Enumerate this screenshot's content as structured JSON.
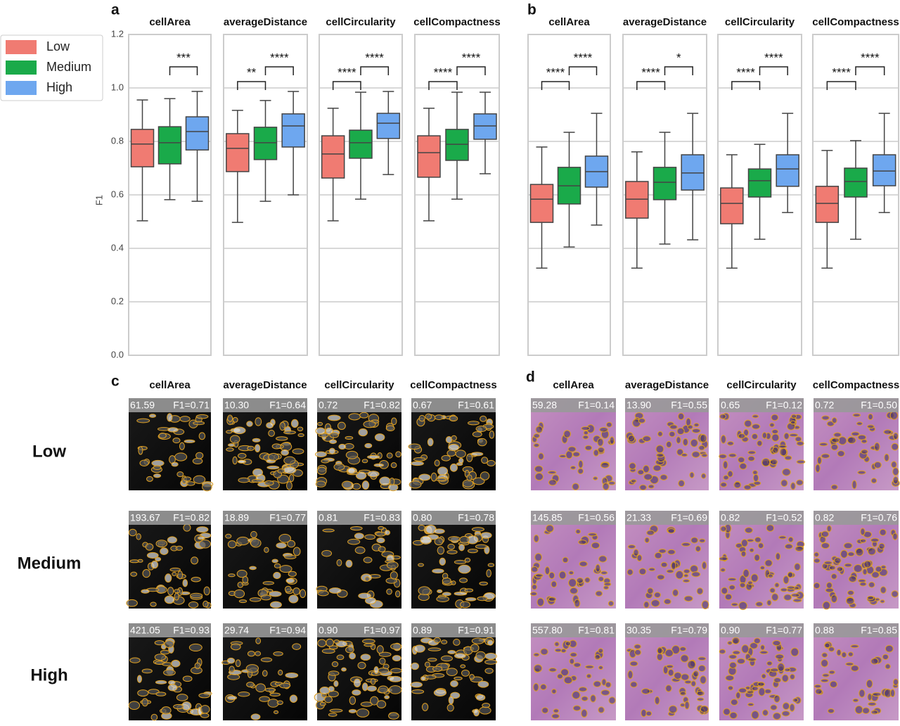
{
  "panels": [
    "a",
    "b",
    "c",
    "d"
  ],
  "legend": [
    {
      "name": "Low",
      "color": "#f07b72"
    },
    {
      "name": "Medium",
      "color": "#1aaa4a"
    },
    {
      "name": "High",
      "color": "#6ea7ef"
    }
  ],
  "chart_data": [
    {
      "type": "box",
      "title": "cellArea",
      "ylabel": "F1",
      "ylim": [
        0,
        1.2
      ],
      "yticks": [
        {
          "value": 0,
          "label": "0.0"
        },
        0.2,
        0.4,
        0.6,
        0.8,
        {
          "value": 1,
          "label": "1.0"
        },
        1.2
      ],
      "boxes": [
        {
          "whisker_low": 0.503,
          "q1": 0.705,
          "median": 0.79,
          "q3": 0.845,
          "whisker_high": 0.955
        },
        {
          "whisker_low": 0.582,
          "q1": 0.716,
          "median": 0.795,
          "q3": 0.855,
          "whisker_high": 0.96
        },
        {
          "whisker_low": 0.576,
          "q1": 0.768,
          "median": 0.837,
          "q3": 0.892,
          "whisker_high": 0.987
        }
      ],
      "significance": [
        null,
        "***"
      ]
    },
    {
      "type": "box",
      "title": "averageDistance",
      "ylim": [
        0,
        1.2
      ],
      "yticks": [
        0,
        0.2,
        0.4,
        0.6,
        0.8,
        1,
        1.2
      ],
      "boxes": [
        {
          "whisker_low": 0.497,
          "q1": 0.687,
          "median": 0.774,
          "q3": 0.829,
          "whisker_high": 0.916
        },
        {
          "whisker_low": 0.576,
          "q1": 0.732,
          "median": 0.795,
          "q3": 0.853,
          "whisker_high": 0.953
        },
        {
          "whisker_low": 0.6,
          "q1": 0.779,
          "median": 0.858,
          "q3": 0.903,
          "whisker_high": 0.987
        }
      ],
      "significance": [
        "**",
        "****"
      ]
    },
    {
      "type": "box",
      "title": "cellCircularity",
      "ylim": [
        0,
        1.2
      ],
      "yticks": [
        0,
        0.2,
        0.4,
        0.6,
        0.8,
        1,
        1.2
      ],
      "boxes": [
        {
          "whisker_low": 0.503,
          "q1": 0.663,
          "median": 0.753,
          "q3": 0.821,
          "whisker_high": 0.924
        },
        {
          "whisker_low": 0.584,
          "q1": 0.737,
          "median": 0.795,
          "q3": 0.842,
          "whisker_high": 0.984
        },
        {
          "whisker_low": 0.676,
          "q1": 0.811,
          "median": 0.868,
          "q3": 0.905,
          "whisker_high": 0.987
        }
      ],
      "significance": [
        "****",
        "****"
      ]
    },
    {
      "type": "box",
      "title": "cellCompactness",
      "ylim": [
        0,
        1.2
      ],
      "yticks": [
        0,
        0.2,
        0.4,
        0.6,
        0.8,
        1,
        1.2
      ],
      "boxes": [
        {
          "whisker_low": 0.503,
          "q1": 0.666,
          "median": 0.758,
          "q3": 0.821,
          "whisker_high": 0.924
        },
        {
          "whisker_low": 0.584,
          "q1": 0.729,
          "median": 0.789,
          "q3": 0.845,
          "whisker_high": 0.984
        },
        {
          "whisker_low": 0.679,
          "q1": 0.808,
          "median": 0.858,
          "q3": 0.903,
          "whisker_high": 0.984
        }
      ],
      "significance": [
        "****",
        "****"
      ]
    },
    {
      "type": "box",
      "title": "cellArea",
      "ylim": [
        0,
        1.2
      ],
      "yticks": [
        0,
        0.2,
        0.4,
        0.6,
        0.8,
        1,
        1.2
      ],
      "boxes": [
        {
          "whisker_low": 0.326,
          "q1": 0.497,
          "median": 0.584,
          "q3": 0.639,
          "whisker_high": 0.779
        },
        {
          "whisker_low": 0.405,
          "q1": 0.566,
          "median": 0.634,
          "q3": 0.703,
          "whisker_high": 0.834
        },
        {
          "whisker_low": 0.487,
          "q1": 0.629,
          "median": 0.687,
          "q3": 0.745,
          "whisker_high": 0.905
        }
      ],
      "significance": [
        "****",
        "****"
      ]
    },
    {
      "type": "box",
      "title": "averageDistance",
      "ylim": [
        0,
        1.2
      ],
      "yticks": [
        0,
        0.2,
        0.4,
        0.6,
        0.8,
        1,
        1.2
      ],
      "boxes": [
        {
          "whisker_low": 0.326,
          "q1": 0.513,
          "median": 0.584,
          "q3": 0.65,
          "whisker_high": 0.761
        },
        {
          "whisker_low": 0.416,
          "q1": 0.582,
          "median": 0.647,
          "q3": 0.703,
          "whisker_high": 0.834
        },
        {
          "whisker_low": 0.432,
          "q1": 0.618,
          "median": 0.682,
          "q3": 0.75,
          "whisker_high": 0.905
        }
      ],
      "significance": [
        "****",
        "*"
      ]
    },
    {
      "type": "box",
      "title": "cellCircularity",
      "ylim": [
        0,
        1.2
      ],
      "yticks": [
        0,
        0.2,
        0.4,
        0.6,
        0.8,
        1,
        1.2
      ],
      "boxes": [
        {
          "whisker_low": 0.326,
          "q1": 0.492,
          "median": 0.568,
          "q3": 0.626,
          "whisker_high": 0.75
        },
        {
          "whisker_low": 0.434,
          "q1": 0.592,
          "median": 0.653,
          "q3": 0.697,
          "whisker_high": 0.789
        },
        {
          "whisker_low": 0.534,
          "q1": 0.632,
          "median": 0.697,
          "q3": 0.75,
          "whisker_high": 0.905
        }
      ],
      "significance": [
        "****",
        "****"
      ]
    },
    {
      "type": "box",
      "title": "cellCompactness",
      "ylim": [
        0,
        1.2
      ],
      "yticks": [
        0,
        0.2,
        0.4,
        0.6,
        0.8,
        1,
        1.2
      ],
      "boxes": [
        {
          "whisker_low": 0.326,
          "q1": 0.497,
          "median": 0.568,
          "q3": 0.632,
          "whisker_high": 0.766
        },
        {
          "whisker_low": 0.434,
          "q1": 0.592,
          "median": 0.65,
          "q3": 0.7,
          "whisker_high": 0.803
        },
        {
          "whisker_low": 0.534,
          "q1": 0.634,
          "median": 0.689,
          "q3": 0.75,
          "whisker_high": 0.905
        }
      ],
      "significance": [
        "****",
        "****"
      ]
    }
  ],
  "row_labels": [
    "Low",
    "Medium",
    "High"
  ],
  "image_grids": [
    {
      "columns": [
        "cellArea",
        "averageDistance",
        "cellCircularity",
        "cellCompactness"
      ],
      "tiles": [
        [
          {
            "value": "61.59",
            "f1": "F1=0.71"
          },
          {
            "value": "10.30",
            "f1": "F1=0.64"
          },
          {
            "value": "0.72",
            "f1": "F1=0.82"
          },
          {
            "value": "0.67",
            "f1": "F1=0.61"
          }
        ],
        [
          {
            "value": "193.67",
            "f1": "F1=0.82"
          },
          {
            "value": "18.89",
            "f1": "F1=0.77"
          },
          {
            "value": "0.81",
            "f1": "F1=0.83"
          },
          {
            "value": "0.80",
            "f1": "F1=0.78"
          }
        ],
        [
          {
            "value": "421.05",
            "f1": "F1=0.93"
          },
          {
            "value": "29.74",
            "f1": "F1=0.94"
          },
          {
            "value": "0.90",
            "f1": "F1=0.97"
          },
          {
            "value": "0.89",
            "f1": "F1=0.91"
          }
        ]
      ]
    },
    {
      "columns": [
        "cellArea",
        "averageDistance",
        "cellCircularity",
        "cellCompactness"
      ],
      "tiles": [
        [
          {
            "value": "59.28",
            "f1": "F1=0.14"
          },
          {
            "value": "13.90",
            "f1": "F1=0.55"
          },
          {
            "value": "0.65",
            "f1": "F1=0.12"
          },
          {
            "value": "0.72",
            "f1": "F1=0.50"
          }
        ],
        [
          {
            "value": "145.85",
            "f1": "F1=0.56"
          },
          {
            "value": "21.33",
            "f1": "F1=0.69"
          },
          {
            "value": "0.82",
            "f1": "F1=0.52"
          },
          {
            "value": "0.82",
            "f1": "F1=0.76"
          }
        ],
        [
          {
            "value": "557.80",
            "f1": "F1=0.81"
          },
          {
            "value": "30.35",
            "f1": "F1=0.79"
          },
          {
            "value": "0.90",
            "f1": "F1=0.77"
          },
          {
            "value": "0.88",
            "f1": "F1=0.85"
          }
        ]
      ]
    }
  ]
}
